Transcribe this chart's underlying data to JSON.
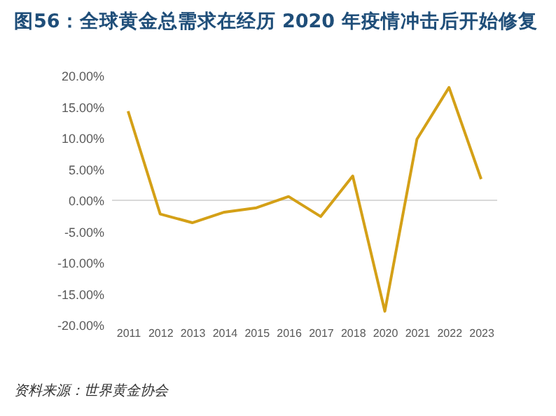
{
  "chart_data": {
    "type": "line",
    "title": "图56：全球黄金总需求在经历 2020 年疫情冲击后开始修复",
    "categories": [
      "2011",
      "2012",
      "2013",
      "2014",
      "2015",
      "2016",
      "2017",
      "2018",
      "2020",
      "2021",
      "2022",
      "2023"
    ],
    "series": [
      {
        "color": "#d4a017",
        "values": [
          14.3,
          -2.2,
          -3.6,
          -1.9,
          -1.2,
          0.6,
          -2.6,
          3.9,
          -17.8,
          9.8,
          18.1,
          3.4
        ]
      }
    ],
    "ylim": [
      -20,
      20
    ],
    "yticks": [
      {
        "value": 20,
        "label": "20.00%"
      },
      {
        "value": 15,
        "label": "15.00%"
      },
      {
        "value": 10,
        "label": "10.00%"
      },
      {
        "value": 5,
        "label": "5.00%"
      },
      {
        "value": 0,
        "label": "0.00%"
      },
      {
        "value": -5,
        "label": "-5.00%"
      },
      {
        "value": -10,
        "label": "-10.00%"
      },
      {
        "value": -15,
        "label": "-15.00%"
      },
      {
        "value": -20,
        "label": "-20.00%"
      }
    ],
    "grid": false,
    "ref_lines": [
      {
        "axis": "y",
        "value": 0,
        "color": "#d9d9d9"
      }
    ],
    "marker": "none",
    "line_style": "solid",
    "annotations": [
      "资料来源：世界黄金协会"
    ]
  }
}
